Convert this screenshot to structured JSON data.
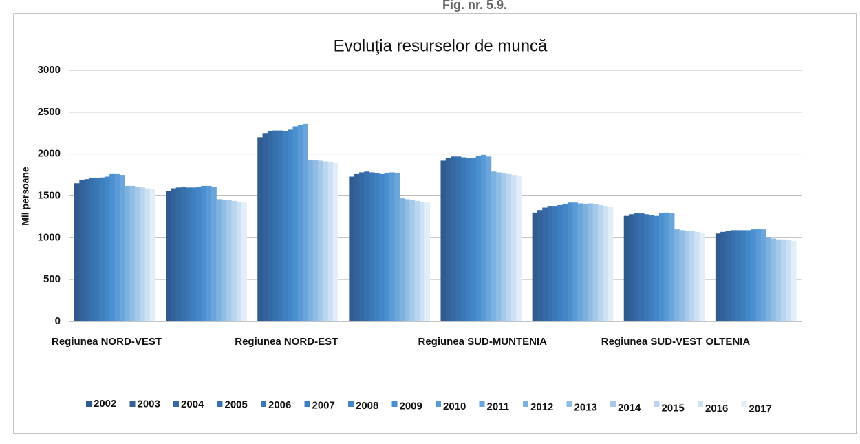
{
  "figure_label": "Fig. nr. 5.9.",
  "chart_data": {
    "type": "bar",
    "title": "Evoluţia resurselor de muncă",
    "y_label": "Mii persoane",
    "categories": [
      "Regiunea NORD-VEST",
      null,
      "Regiunea NORD-EST",
      null,
      "Regiunea SUD-MUNTENIA",
      null,
      "Regiunea SUD-VEST OLTENIA",
      null
    ],
    "ylim": [
      0,
      3000
    ],
    "yticks": [
      0,
      500,
      1000,
      1500,
      2000,
      2500,
      3000
    ],
    "grid": true,
    "legend": "bottom",
    "series": [
      {
        "name": "2002",
        "color": "#2f5b8f",
        "values": [
          1650,
          1560,
          2200,
          1730,
          1920,
          1300,
          1260,
          1050
        ]
      },
      {
        "name": "2003",
        "color": "#33629a",
        "values": [
          1690,
          1590,
          2250,
          1760,
          1950,
          1330,
          1280,
          1070
        ]
      },
      {
        "name": "2004",
        "color": "#3469a3",
        "values": [
          1700,
          1600,
          2270,
          1780,
          1970,
          1360,
          1290,
          1080
        ]
      },
      {
        "name": "2005",
        "color": "#3770ad",
        "values": [
          1710,
          1610,
          2280,
          1790,
          1970,
          1380,
          1290,
          1090
        ]
      },
      {
        "name": "2006",
        "color": "#3a77b6",
        "values": [
          1710,
          1600,
          2280,
          1780,
          1960,
          1380,
          1280,
          1090
        ]
      },
      {
        "name": "2007",
        "color": "#3e7fbf",
        "values": [
          1720,
          1600,
          2270,
          1770,
          1950,
          1390,
          1270,
          1090
        ]
      },
      {
        "name": "2008",
        "color": "#4387c8",
        "values": [
          1730,
          1610,
          2290,
          1760,
          1950,
          1400,
          1260,
          1090
        ]
      },
      {
        "name": "2009",
        "color": "#4a8fd0",
        "values": [
          1760,
          1620,
          2330,
          1770,
          1980,
          1420,
          1290,
          1100
        ]
      },
      {
        "name": "2010",
        "color": "#5a9ad6",
        "values": [
          1760,
          1620,
          2350,
          1780,
          1990,
          1420,
          1300,
          1110
        ]
      },
      {
        "name": "2011",
        "color": "#6aa5db",
        "values": [
          1750,
          1610,
          2360,
          1770,
          1970,
          1410,
          1290,
          1100
        ]
      },
      {
        "name": "2012",
        "color": "#7db1e0",
        "values": [
          1620,
          1460,
          1930,
          1470,
          1790,
          1400,
          1100,
          1000
        ]
      },
      {
        "name": "2013",
        "color": "#91bde5",
        "values": [
          1620,
          1450,
          1930,
          1460,
          1780,
          1410,
          1090,
          990
        ]
      },
      {
        "name": "2014",
        "color": "#a5c9ea",
        "values": [
          1610,
          1450,
          1920,
          1450,
          1770,
          1400,
          1080,
          980
        ]
      },
      {
        "name": "2015",
        "color": "#b9d5ef",
        "values": [
          1600,
          1440,
          1910,
          1440,
          1760,
          1390,
          1080,
          980
        ]
      },
      {
        "name": "2016",
        "color": "#cde1f4",
        "values": [
          1590,
          1430,
          1900,
          1430,
          1750,
          1380,
          1070,
          970
        ]
      },
      {
        "name": "2017",
        "color": "#e1edf9",
        "values": [
          1580,
          1420,
          1890,
          1420,
          1740,
          1370,
          1060,
          960
        ]
      }
    ]
  }
}
